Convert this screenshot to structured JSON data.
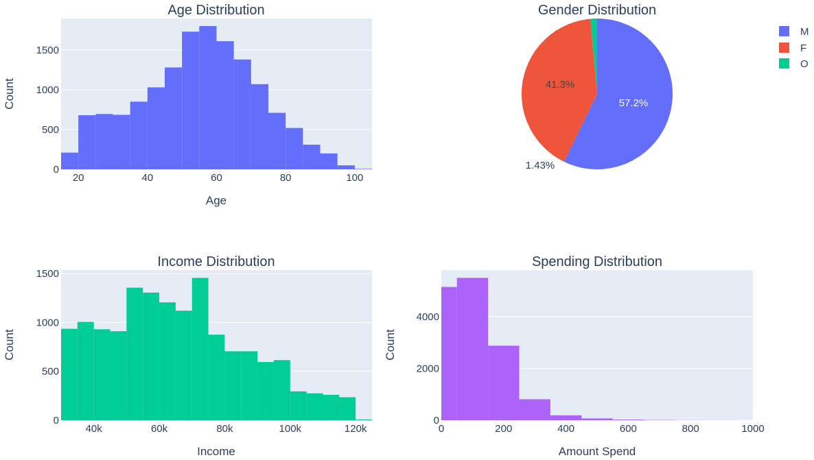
{
  "chart_data": [
    {
      "type": "bar",
      "title": "Age Distribution",
      "xlabel": "Age",
      "ylabel": "Count",
      "color": "#636efa",
      "bins": [
        {
          "x0": 15,
          "x1": 20,
          "count": 210
        },
        {
          "x0": 20,
          "x1": 25,
          "count": 680
        },
        {
          "x0": 25,
          "x1": 30,
          "count": 695
        },
        {
          "x0": 30,
          "x1": 35,
          "count": 685
        },
        {
          "x0": 35,
          "x1": 40,
          "count": 850
        },
        {
          "x0": 40,
          "x1": 45,
          "count": 1030
        },
        {
          "x0": 45,
          "x1": 50,
          "count": 1280
        },
        {
          "x0": 50,
          "x1": 55,
          "count": 1730
        },
        {
          "x0": 55,
          "x1": 60,
          "count": 1800
        },
        {
          "x0": 60,
          "x1": 65,
          "count": 1610
        },
        {
          "x0": 65,
          "x1": 70,
          "count": 1380
        },
        {
          "x0": 70,
          "x1": 75,
          "count": 1070
        },
        {
          "x0": 75,
          "x1": 80,
          "count": 710
        },
        {
          "x0": 80,
          "x1": 85,
          "count": 520
        },
        {
          "x0": 85,
          "x1": 90,
          "count": 310
        },
        {
          "x0": 90,
          "x1": 95,
          "count": 200
        },
        {
          "x0": 95,
          "x1": 100,
          "count": 50
        },
        {
          "x0": 100,
          "x1": 105,
          "count": 6
        }
      ],
      "xlim": [
        15,
        105
      ],
      "ylim": [
        0,
        1895
      ],
      "xticks": [
        20,
        40,
        60,
        80,
        100
      ],
      "xtick_labels": [
        "20",
        "40",
        "60",
        "80",
        "100"
      ],
      "yticks": [
        0,
        500,
        1000,
        1500
      ],
      "ytick_labels": [
        "0",
        "500",
        "1000",
        "1500"
      ],
      "grid": true
    },
    {
      "type": "pie",
      "title": "Gender Distribution",
      "labels": [
        "M",
        "F",
        "O"
      ],
      "values": [
        57.2,
        41.3,
        1.43
      ],
      "text_labels": [
        "57.2%",
        "41.3%",
        "1.43%"
      ],
      "colors": [
        "#636efa",
        "#ef553b",
        "#00cc96"
      ],
      "legend": "top-right"
    },
    {
      "type": "bar",
      "title": "Income Distribution",
      "xlabel": "Income",
      "ylabel": "Count",
      "color": "#00cc96",
      "bins": [
        {
          "x0": 30000,
          "x1": 35000,
          "count": 935
        },
        {
          "x0": 35000,
          "x1": 40000,
          "count": 1005
        },
        {
          "x0": 40000,
          "x1": 45000,
          "count": 930
        },
        {
          "x0": 45000,
          "x1": 50000,
          "count": 910
        },
        {
          "x0": 50000,
          "x1": 55000,
          "count": 1355
        },
        {
          "x0": 55000,
          "x1": 60000,
          "count": 1305
        },
        {
          "x0": 60000,
          "x1": 65000,
          "count": 1205
        },
        {
          "x0": 65000,
          "x1": 70000,
          "count": 1120
        },
        {
          "x0": 70000,
          "x1": 75000,
          "count": 1455
        },
        {
          "x0": 75000,
          "x1": 80000,
          "count": 875
        },
        {
          "x0": 80000,
          "x1": 85000,
          "count": 705
        },
        {
          "x0": 85000,
          "x1": 90000,
          "count": 705
        },
        {
          "x0": 90000,
          "x1": 95000,
          "count": 595
        },
        {
          "x0": 95000,
          "x1": 100000,
          "count": 615
        },
        {
          "x0": 100000,
          "x1": 105000,
          "count": 295
        },
        {
          "x0": 105000,
          "x1": 110000,
          "count": 275
        },
        {
          "x0": 110000,
          "x1": 115000,
          "count": 260
        },
        {
          "x0": 115000,
          "x1": 120000,
          "count": 235
        },
        {
          "x0": 120000,
          "x1": 125000,
          "count": 8
        }
      ],
      "xlim": [
        30000,
        125000
      ],
      "ylim": [
        0,
        1535
      ],
      "xticks": [
        40000,
        60000,
        80000,
        100000,
        120000
      ],
      "xtick_labels": [
        "40k",
        "60k",
        "80k",
        "100k",
        "120k"
      ],
      "yticks": [
        0,
        500,
        1000,
        1500
      ],
      "ytick_labels": [
        "0",
        "500",
        "1000",
        "1500"
      ],
      "grid": true
    },
    {
      "type": "bar",
      "title": "Spending Distribution",
      "xlabel": "Amount Spend",
      "ylabel": "Count",
      "color": "#ab63fa",
      "bins": [
        {
          "x0": 0,
          "x1": 50,
          "count": 5150
        },
        {
          "x0": 50,
          "x1": 150,
          "count": 5500
        },
        {
          "x0": 150,
          "x1": 250,
          "count": 2880
        },
        {
          "x0": 250,
          "x1": 350,
          "count": 810
        },
        {
          "x0": 350,
          "x1": 450,
          "count": 190
        },
        {
          "x0": 450,
          "x1": 550,
          "count": 70
        },
        {
          "x0": 550,
          "x1": 650,
          "count": 25
        },
        {
          "x0": 650,
          "x1": 750,
          "count": 12
        },
        {
          "x0": 750,
          "x1": 850,
          "count": 6
        },
        {
          "x0": 850,
          "x1": 950,
          "count": 4
        },
        {
          "x0": 950,
          "x1": 1000,
          "count": 2
        }
      ],
      "xlim": [
        0,
        1000
      ],
      "ylim": [
        0,
        5800
      ],
      "xticks": [
        0,
        200,
        400,
        600,
        800,
        1000
      ],
      "xtick_labels": [
        "0",
        "200",
        "400",
        "600",
        "800",
        "1000"
      ],
      "yticks": [
        0,
        2000,
        4000
      ],
      "ytick_labels": [
        "0",
        "2000",
        "4000"
      ],
      "grid": true
    }
  ]
}
